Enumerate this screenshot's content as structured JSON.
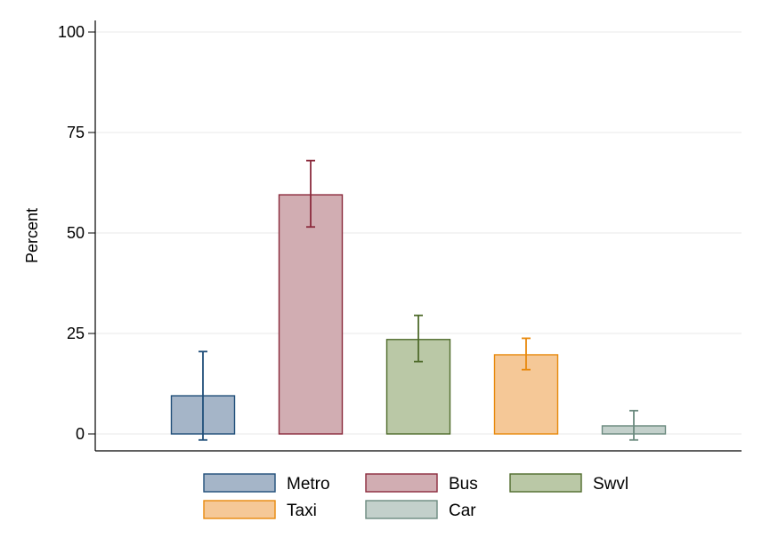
{
  "chart_data": {
    "type": "bar",
    "title": "",
    "xlabel": "",
    "ylabel": "Percent",
    "ylim": [
      0,
      100
    ],
    "yticks": [
      0,
      25,
      50,
      75,
      100
    ],
    "grid": true,
    "legend_position": "bottom",
    "series": [
      {
        "name": "Metro",
        "value": 9.5,
        "ci_low": -1.5,
        "ci_high": 20.5,
        "fill": "#a5b5c8",
        "stroke": "#1f4e79"
      },
      {
        "name": "Bus",
        "value": 59.5,
        "ci_low": 51.5,
        "ci_high": 68.0,
        "fill": "#d1adb2",
        "stroke": "#8b2a3c"
      },
      {
        "name": "Swvl",
        "value": 23.5,
        "ci_low": 18.0,
        "ci_high": 29.5,
        "fill": "#bac8a6",
        "stroke": "#4f6b2b"
      },
      {
        "name": "Taxi",
        "value": 19.7,
        "ci_low": 16.0,
        "ci_high": 23.8,
        "fill": "#f5c897",
        "stroke": "#e8890c"
      },
      {
        "name": "Car",
        "value": 2.0,
        "ci_low": -1.5,
        "ci_high": 5.8,
        "fill": "#c3d0cb",
        "stroke": "#6b8a7f"
      }
    ]
  }
}
